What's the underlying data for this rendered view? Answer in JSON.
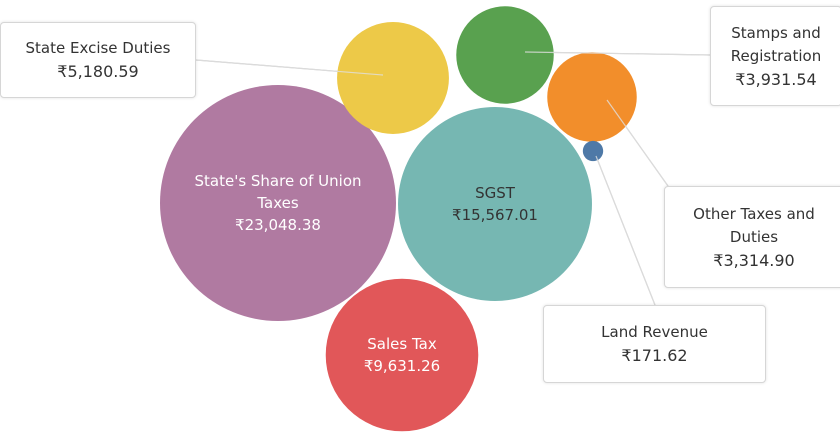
{
  "chart_data": {
    "type": "bubble",
    "categories": [
      "State's Share of Union Taxes",
      "SGST",
      "Sales Tax",
      "State Excise Duties",
      "Stamps and Registration",
      "Other Taxes and Duties",
      "Land Revenue"
    ],
    "values": [
      23048.38,
      15567.01,
      9631.26,
      5180.59,
      3931.54,
      3314.9,
      171.62
    ],
    "value_labels": [
      "₹23,048.38",
      "₹15,567.01",
      "₹9,631.26",
      "₹5,180.59",
      "₹3,931.54",
      "₹3,314.90",
      "₹171.62"
    ],
    "colors": [
      "#b07aa1",
      "#76b7b2",
      "#e15759",
      "#edc948",
      "#59a14f",
      "#f28e2b",
      "#4e79a7"
    ]
  }
}
